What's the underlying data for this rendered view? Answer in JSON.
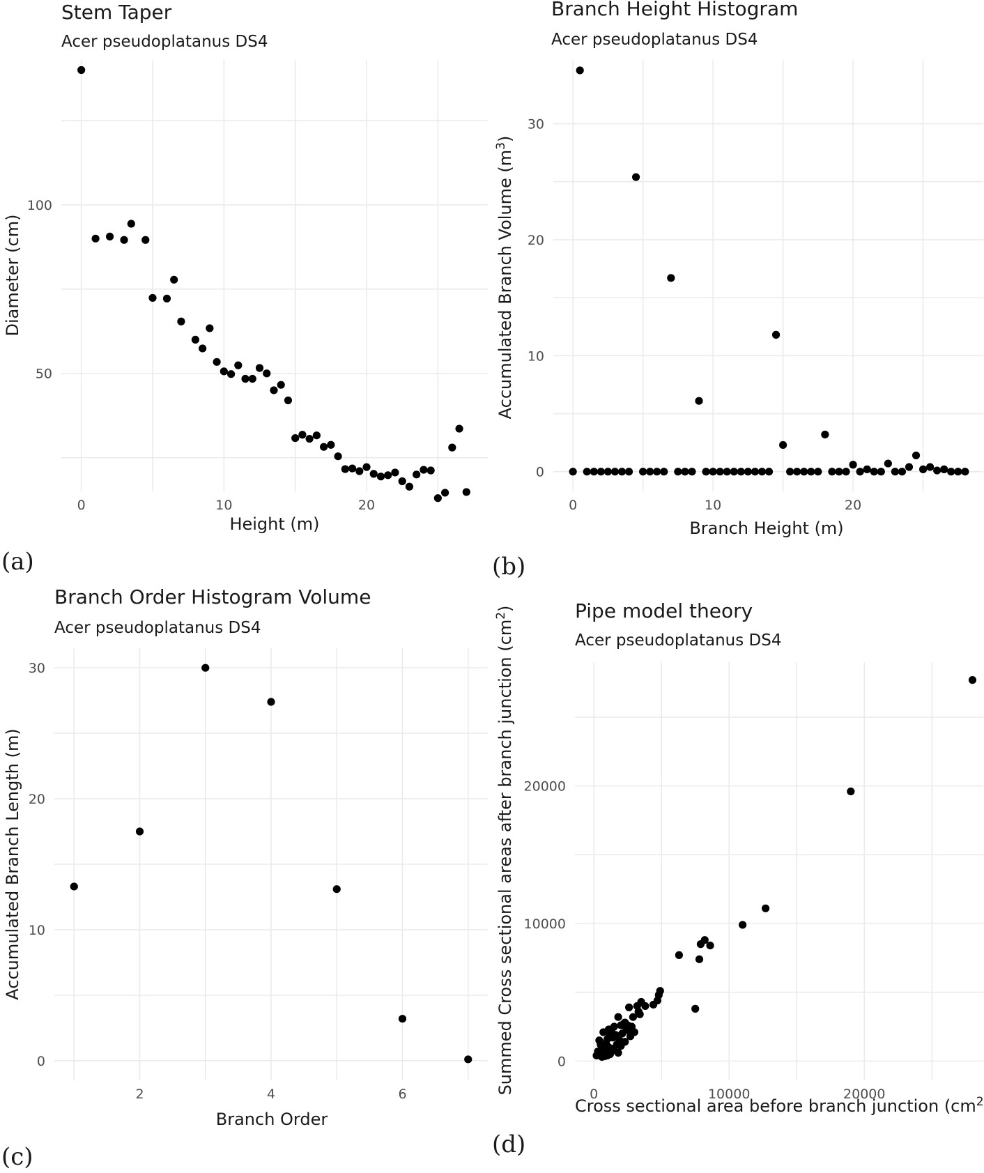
{
  "chart_data": [
    {
      "type": "scatter",
      "panel_label": "(a)",
      "title": "Stem Taper",
      "subtitle": "Acer pseudoplatanus DS4",
      "xlabel": "Height (m)",
      "ylabel": "Diameter (cm)",
      "xlim": [
        -1.4,
        28.5
      ],
      "ylim": [
        15,
        143
      ],
      "xticks": [
        0,
        10,
        20
      ],
      "yticks": [
        50,
        100
      ],
      "xminor": [
        5,
        15,
        25
      ],
      "yminor": [
        25,
        75,
        125
      ],
      "x": [
        0,
        1,
        2,
        3,
        3.5,
        4.5,
        5,
        6,
        6.5,
        7,
        8,
        8.5,
        9,
        9.5,
        10,
        10.5,
        11,
        11.5,
        12,
        12.5,
        13,
        13.5,
        14,
        14.5,
        15,
        15.5,
        16,
        16.5,
        17,
        17.5,
        18,
        18.5,
        19,
        19.5,
        20,
        20.5,
        21,
        21.5,
        22,
        22.5,
        23,
        23.5,
        24,
        24.5,
        25,
        25.5,
        26,
        26.5,
        27
      ],
      "y": [
        140,
        90,
        90.6,
        89.6,
        94.4,
        89.6,
        72.4,
        72.2,
        77.8,
        65.4,
        60,
        57.4,
        63.4,
        53.4,
        50.6,
        49.8,
        52.4,
        48.4,
        48.4,
        51.6,
        50,
        45,
        46.6,
        42,
        30.8,
        31.8,
        30.6,
        31.6,
        28.2,
        28.8,
        25.4,
        21.6,
        21.8,
        21,
        22.2,
        20.2,
        19.4,
        19.8,
        20.6,
        18,
        16.4,
        20,
        21.4,
        21.2,
        13,
        14.6,
        28,
        33.6,
        14.8
      ]
    },
    {
      "type": "scatter",
      "panel_label": "(b)",
      "title": "Branch Height Histogram",
      "subtitle": "Acer pseudoplatanus DS4",
      "xlabel": "Branch Height (m)",
      "ylabel": "Accumulated Branch Volume (m",
      "ylabel_sup": "3",
      "ylabel_end": ")",
      "xlim": [
        -1.4,
        29.3
      ],
      "ylim": [
        -1.7,
        35.5
      ],
      "xticks": [
        0,
        10,
        20
      ],
      "yticks": [
        0,
        10,
        20,
        30
      ],
      "xminor": [
        5,
        15,
        25
      ],
      "yminor": [
        5,
        15,
        25
      ],
      "x": [
        0,
        0.5,
        1,
        1.5,
        2,
        2.5,
        3,
        3.5,
        4,
        4.5,
        5,
        5.5,
        6,
        6.5,
        7,
        7.5,
        8,
        8.5,
        9,
        9.5,
        10,
        10.5,
        11,
        11.5,
        12,
        12.5,
        13,
        13.5,
        14,
        14.5,
        15,
        15.5,
        16,
        16.5,
        17,
        17.5,
        18,
        18.5,
        19,
        19.5,
        20,
        20.5,
        21,
        21.5,
        22,
        22.5,
        23,
        23.5,
        24,
        24.5,
        25,
        25.5,
        26,
        26.5,
        27,
        27.5,
        28
      ],
      "y": [
        0,
        34.6,
        0,
        0,
        0,
        0,
        0,
        0,
        0,
        25.4,
        0,
        0,
        0,
        0,
        16.7,
        0,
        0,
        0,
        6.1,
        0,
        0,
        0,
        0,
        0,
        0,
        0,
        0,
        0,
        0,
        11.8,
        2.3,
        0,
        0,
        0,
        0,
        0,
        3.2,
        0,
        0,
        0,
        0.6,
        0,
        0.2,
        0,
        0,
        0.7,
        0,
        0,
        0.4,
        1.4,
        0.2,
        0.4,
        0.1,
        0.2,
        0,
        0,
        0
      ]
    },
    {
      "type": "scatter",
      "panel_label": "(c)",
      "title": "Branch Order Histogram Volume",
      "subtitle": "Acer pseudoplatanus DS4",
      "xlabel": "Branch Order",
      "ylabel": "Accumulated Branch Length (m)",
      "xlim": [
        0.7,
        7.3
      ],
      "ylim": [
        -1.5,
        31.5
      ],
      "xticks": [
        2,
        4,
        6
      ],
      "yticks": [
        0,
        10,
        20,
        30
      ],
      "xminor": [
        1,
        3,
        5,
        7
      ],
      "yminor": [
        5,
        15,
        25
      ],
      "x": [
        1,
        2,
        3,
        4,
        5,
        6,
        7
      ],
      "y": [
        13.3,
        17.5,
        30,
        27.4,
        13.1,
        3.2,
        0.1
      ]
    },
    {
      "type": "scatter",
      "panel_label": "(d)",
      "title": "Pipe model theory",
      "subtitle": "Acer pseudoplatanus DS4",
      "xlabel": "Cross sectional area before branch junction (cm",
      "xlabel_sup": "2",
      "xlabel_end": ")",
      "ylabel": "Summed Cross sectional areas after branch junction (cm",
      "ylabel_sup": "2",
      "ylabel_end": ")",
      "xlim": [
        -1400,
        28800
      ],
      "ylim": [
        -1400,
        29000
      ],
      "xticks": [
        0,
        10000,
        20000
      ],
      "yticks": [
        0,
        10000,
        20000
      ],
      "xminor": [
        5000,
        15000,
        25000
      ],
      "yminor": [
        5000,
        15000,
        25000
      ],
      "x": [
        28000,
        19000,
        12700,
        11000,
        8200,
        8600,
        7900,
        7800,
        6300,
        7500,
        4900,
        4700,
        4800,
        4400,
        3800,
        3500,
        3300,
        3000,
        2600,
        2900,
        3400,
        3200,
        2200,
        2000,
        1800,
        2400,
        2300,
        1500,
        1300,
        1200,
        1000,
        900,
        800,
        600,
        500,
        400,
        300,
        200,
        700,
        1100,
        1600,
        1900,
        2100,
        2500,
        2700,
        1400,
        1700,
        900,
        600,
        300,
        1000,
        1300,
        2600,
        2000,
        1500,
        1800,
        1200,
        800,
        500,
        400,
        2300,
        2800,
        1100
      ],
      "y": [
        27700,
        19600,
        11100,
        9900,
        8800,
        8400,
        8500,
        7400,
        7700,
        3800,
        5100,
        4400,
        4800,
        4100,
        4000,
        4300,
        3600,
        2100,
        3900,
        3200,
        3400,
        4000,
        2700,
        2600,
        3200,
        2400,
        2800,
        2500,
        2200,
        1900,
        1600,
        1300,
        1100,
        900,
        700,
        600,
        500,
        400,
        2100,
        2300,
        1900,
        1500,
        2000,
        2600,
        1800,
        1700,
        1200,
        800,
        300,
        700,
        400,
        900,
        2200,
        1100,
        800,
        600,
        500,
        350,
        1200,
        1500,
        1400,
        2500,
        1000
      ]
    }
  ]
}
